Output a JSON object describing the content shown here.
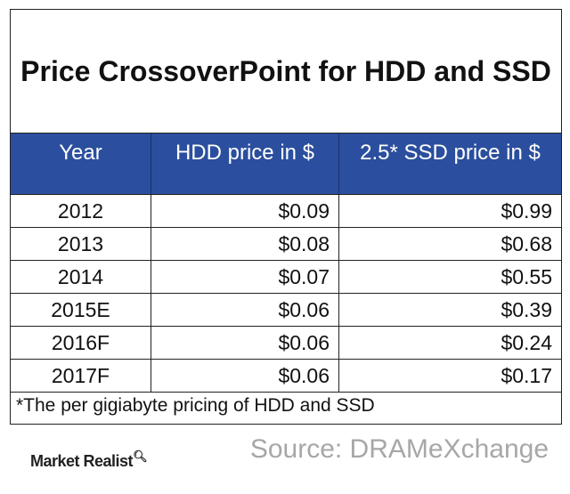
{
  "chart_data": {
    "type": "table",
    "title": "Price CrossoverPoint for HDD and SSD",
    "columns": [
      "Year",
      "HDD price in $",
      "2.5* SSD price in $"
    ],
    "rows": [
      [
        "2012",
        "$0.09",
        "$0.99"
      ],
      [
        "2013",
        "$0.08",
        "$0.68"
      ],
      [
        "2014",
        "$0.07",
        "$0.55"
      ],
      [
        "2015E",
        "$0.06",
        "$0.39"
      ],
      [
        "2016F",
        "$0.06",
        "$0.24"
      ],
      [
        "2017F",
        "$0.06",
        "$0.17"
      ]
    ],
    "footnote": "*The per gigiabyte pricing of HDD and SSD",
    "source": "Source: DRAMeXchange",
    "brand": "Market Realist",
    "header_color": "#2b4f9e"
  }
}
